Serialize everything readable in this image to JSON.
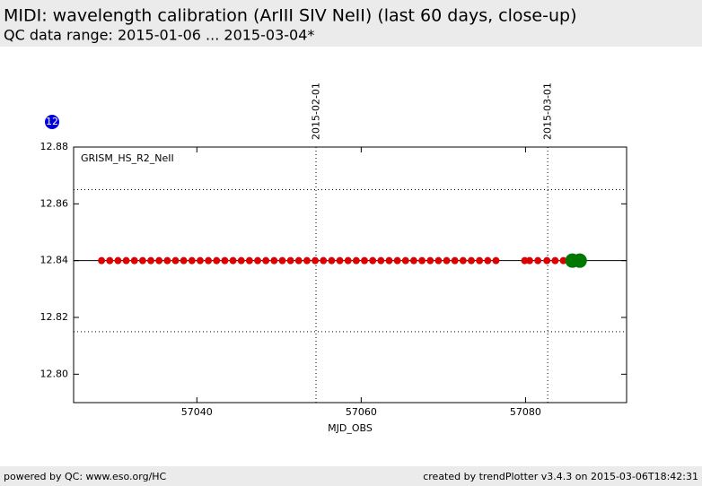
{
  "header": {
    "title": "MIDI: wavelength calibration (ArIII SIV NeII) (last 60 days, close-up)",
    "subtitle": "QC data range: 2015-01-06 ... 2015-03-04*"
  },
  "badge": "12",
  "footer": {
    "left": "powered by QC: www.eso.org/HC",
    "right": "created by trendPlotter v3.4.3 on 2015-03-06T18:42:31"
  },
  "chart_data": {
    "type": "scatter",
    "annotation": "GRISM_HS_R2_NeII",
    "xlabel": "MJD_OBS",
    "xlim": [
      57025,
      57092.3
    ],
    "xticks": [
      57040,
      57060,
      57080
    ],
    "ylim": [
      12.79,
      12.88
    ],
    "yticks": [
      {
        "value": 12.8,
        "label": "12.80"
      },
      12.82,
      12.84,
      12.86,
      12.88
    ],
    "grid": false,
    "hlines": [
      {
        "value": 12.865,
        "style": "dotted"
      },
      {
        "value": 12.84,
        "style": "solid"
      },
      {
        "value": 12.815,
        "style": "dotted"
      }
    ],
    "vlines": [
      {
        "x": 57054.5,
        "label": "2015-02-01"
      },
      {
        "x": 57082.7,
        "label": "2015-03-01"
      }
    ],
    "series": [
      {
        "color": "#dd0000",
        "size": 4,
        "x": [
          57028.4,
          57029.4,
          57030.4,
          57031.4,
          57032.4,
          57033.4,
          57034.4,
          57035.4,
          57036.4,
          57037.4,
          57038.4,
          57039.4,
          57040.4,
          57041.4,
          57042.4,
          57043.4,
          57044.4,
          57045.4,
          57046.4,
          57047.4,
          57048.4,
          57049.4,
          57050.4,
          57051.4,
          57052.4,
          57053.4,
          57054.4,
          57055.4,
          57056.4,
          57057.4,
          57058.4,
          57059.4,
          57060.4,
          57061.4,
          57062.4,
          57063.4,
          57064.4,
          57065.4,
          57066.4,
          57067.4,
          57068.4,
          57069.4,
          57070.4,
          57071.4,
          57072.4,
          57073.4,
          57074.4,
          57075.4,
          57076.4,
          57079.9,
          57080.5,
          57081.5,
          57082.6,
          57083.6,
          57084.6
        ],
        "values": [
          12.84,
          12.84,
          12.84,
          12.84,
          12.84,
          12.84,
          12.84,
          12.84,
          12.84,
          12.84,
          12.84,
          12.84,
          12.84,
          12.84,
          12.84,
          12.84,
          12.84,
          12.84,
          12.84,
          12.84,
          12.84,
          12.84,
          12.84,
          12.84,
          12.84,
          12.84,
          12.84,
          12.84,
          12.84,
          12.84,
          12.84,
          12.84,
          12.84,
          12.84,
          12.84,
          12.84,
          12.84,
          12.84,
          12.84,
          12.84,
          12.84,
          12.84,
          12.84,
          12.84,
          12.84,
          12.84,
          12.84,
          12.84,
          12.84,
          12.84,
          12.84,
          12.84,
          12.84,
          12.84,
          12.84
        ]
      },
      {
        "color": "#007700",
        "size": 8,
        "x": [
          57085.7,
          57086.6
        ],
        "values": [
          12.84,
          12.84
        ]
      }
    ]
  }
}
